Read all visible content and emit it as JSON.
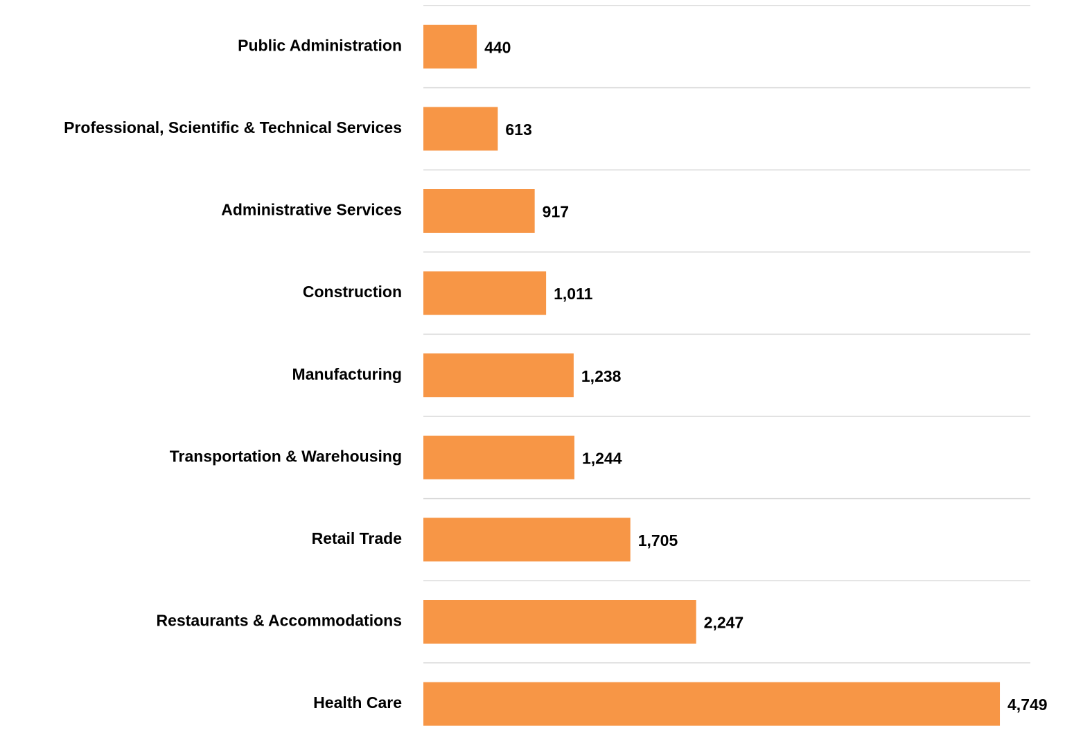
{
  "chart_data": {
    "type": "barh",
    "categories": [
      "Public Administration",
      "Professional, Scientific & Technical Services",
      "Administrative Services",
      "Construction",
      "Manufacturing",
      "Transportation & Warehousing",
      "Retail Trade",
      "Restaurants & Accommodations",
      "Health Care"
    ],
    "values": [
      440,
      613,
      917,
      1011,
      1238,
      1244,
      1705,
      2247,
      4749
    ],
    "value_labels": [
      "440",
      "613",
      "917",
      "1,011",
      "1,238",
      "1,244",
      "1,705",
      "2,247",
      "4,749"
    ],
    "color": "#f79646",
    "xlim": [
      0,
      5000
    ]
  }
}
